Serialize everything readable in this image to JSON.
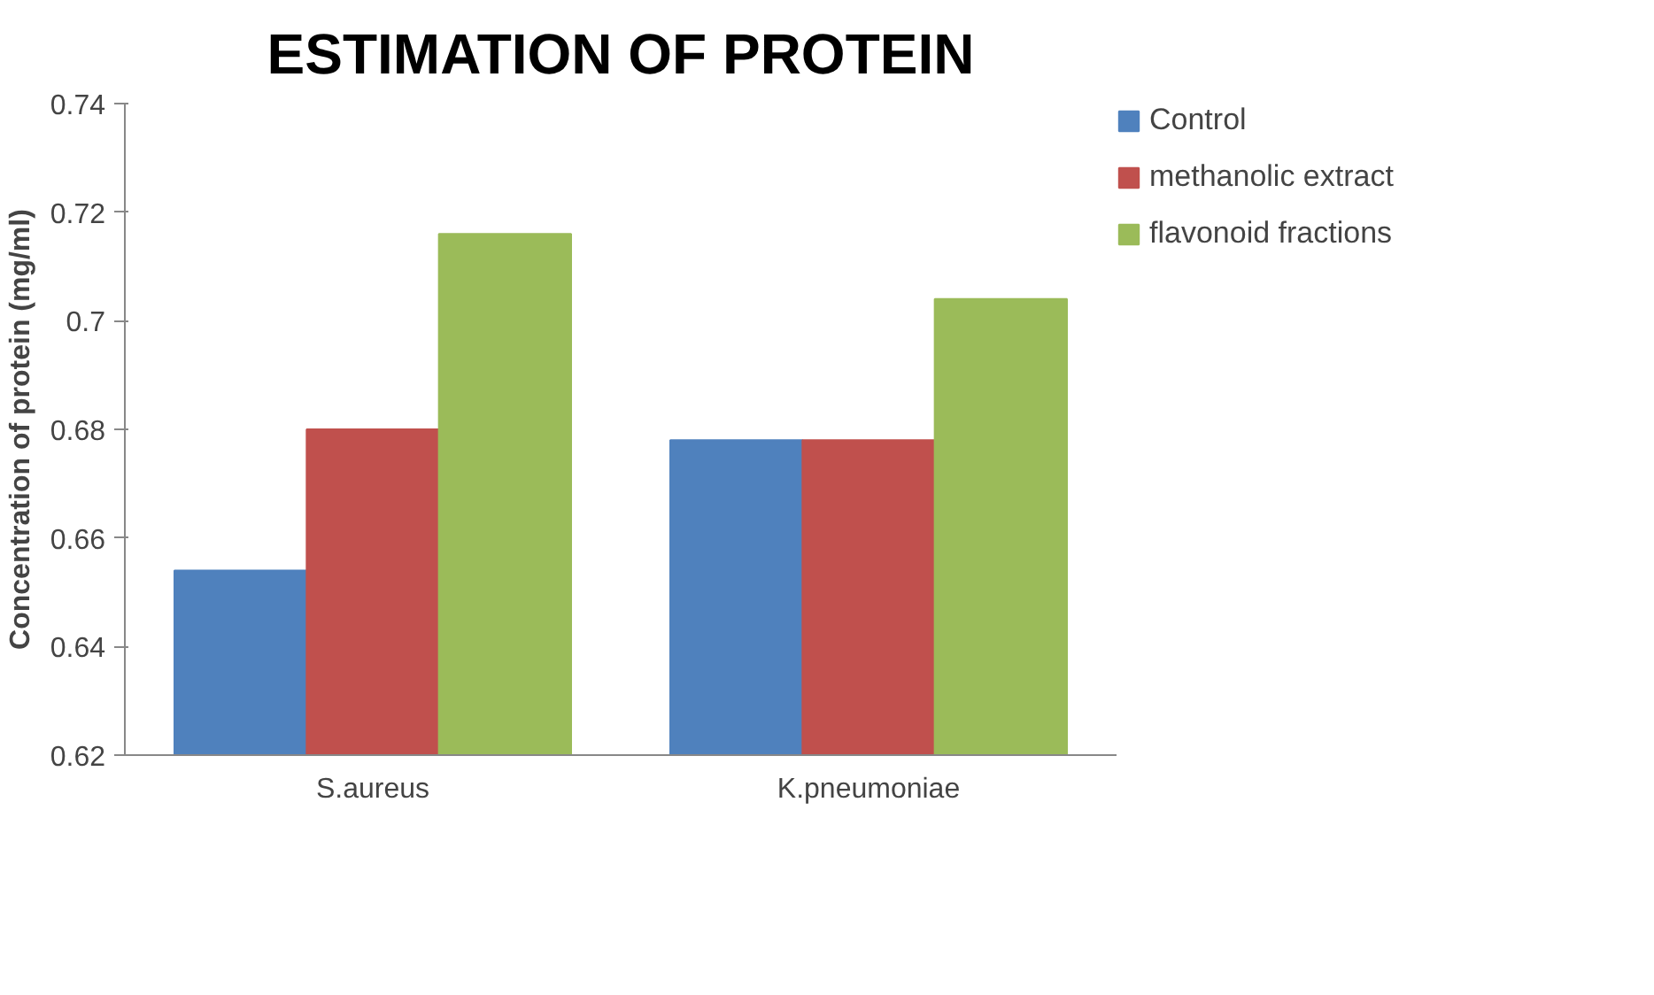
{
  "chart_data": {
    "type": "bar",
    "title": "ESTIMATION OF PROTEIN",
    "ylabel": "Concentration of protein (mg/ml)",
    "categories": [
      "S.aureus",
      "K.pneumoniae"
    ],
    "series": [
      {
        "name": "Control",
        "color": "#4f81bd",
        "values": [
          0.654,
          0.678
        ]
      },
      {
        "name": "methanolic extract",
        "color": "#c0504d",
        "values": [
          0.68,
          0.678
        ]
      },
      {
        "name": "flavonoid fractions",
        "color": "#9bbb59",
        "values": [
          0.716,
          0.704
        ]
      }
    ],
    "ylim": [
      0.62,
      0.74
    ],
    "yticks": [
      0.62,
      0.64,
      0.66,
      0.68,
      0.7,
      0.72,
      0.74
    ],
    "grid": false,
    "legend": "right"
  }
}
